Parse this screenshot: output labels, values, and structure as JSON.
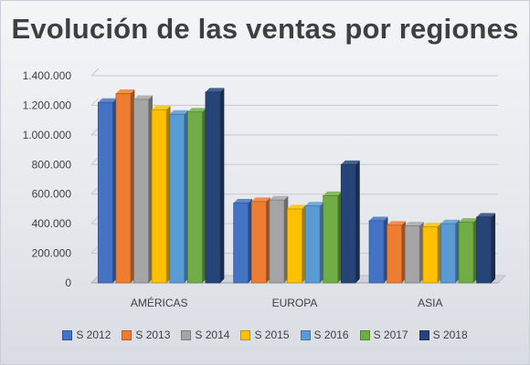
{
  "chart_data": {
    "type": "bar",
    "title": "Evolución de las ventas por regiones",
    "categories": [
      "AMÉRICAS",
      "EUROPA",
      "ASIA"
    ],
    "ylim": [
      0,
      1400000
    ],
    "yticks": [
      0,
      200000,
      400000,
      600000,
      800000,
      1000000,
      1200000,
      1400000
    ],
    "ytick_labels": [
      "0",
      "200.000",
      "400.000",
      "600.000",
      "800.000",
      "1.000.000",
      "1.200.000",
      "1.400.000"
    ],
    "grid": true,
    "legend_position": "bottom",
    "series": [
      {
        "name": "S 2012",
        "color": "#4472C4",
        "values": [
          1220000,
          540000,
          420000
        ]
      },
      {
        "name": "S 2013",
        "color": "#ED7D31",
        "values": [
          1280000,
          550000,
          390000
        ]
      },
      {
        "name": "S 2014",
        "color": "#A5A5A5",
        "values": [
          1240000,
          560000,
          385000
        ]
      },
      {
        "name": "S 2015",
        "color": "#FFC000",
        "values": [
          1170000,
          500000,
          380000
        ]
      },
      {
        "name": "S 2016",
        "color": "#5B9BD5",
        "values": [
          1140000,
          520000,
          400000
        ]
      },
      {
        "name": "S 2017",
        "color": "#70AD47",
        "values": [
          1155000,
          590000,
          410000
        ]
      },
      {
        "name": "S 2018",
        "color": "#264478",
        "values": [
          1290000,
          800000,
          445000
        ]
      }
    ]
  }
}
